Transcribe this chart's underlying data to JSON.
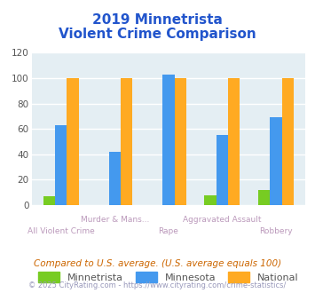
{
  "title_line1": "2019 Minnetrista",
  "title_line2": "Violent Crime Comparison",
  "categories": [
    "All Violent Crime",
    "Murder & Mans...",
    "Rape",
    "Aggravated Assault",
    "Robbery"
  ],
  "series": {
    "Minnetrista": [
      7,
      0,
      0,
      8,
      12
    ],
    "Minnesota": [
      63,
      42,
      103,
      55,
      69
    ],
    "National": [
      100,
      100,
      100,
      100,
      100
    ]
  },
  "colors": {
    "Minnetrista": "#77cc22",
    "Minnesota": "#4499ee",
    "National": "#ffaa22"
  },
  "ylim": [
    0,
    120
  ],
  "yticks": [
    0,
    20,
    40,
    60,
    80,
    100,
    120
  ],
  "plot_bg": "#e4eef3",
  "title_color": "#2255cc",
  "xlabel_color": "#bb99bb",
  "footer_note": "Compared to U.S. average. (U.S. average equals 100)",
  "footer_credit": "© 2025 CityRating.com - https://www.cityrating.com/crime-statistics/",
  "footer_note_color": "#cc6600",
  "footer_credit_color": "#9999bb",
  "top_labels": [
    "",
    "Murder & Mans...",
    "",
    "Aggravated Assault",
    ""
  ],
  "bot_labels": [
    "All Violent Crime",
    "",
    "Rape",
    "",
    "Robbery"
  ]
}
